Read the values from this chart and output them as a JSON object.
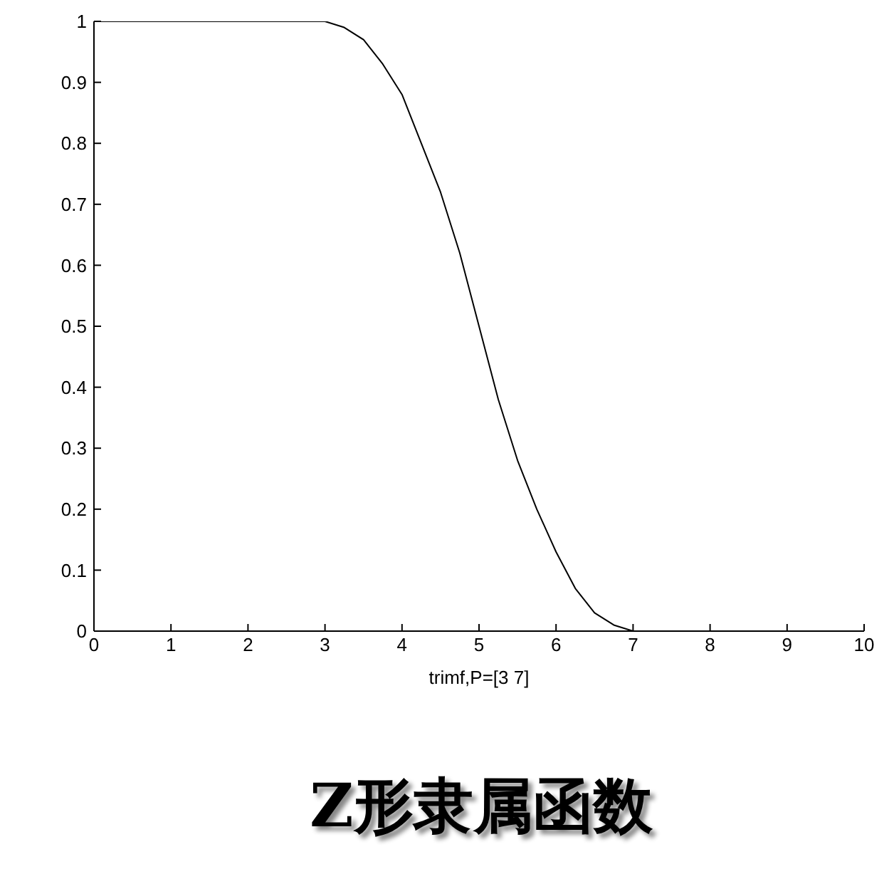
{
  "chart_data": {
    "type": "line",
    "title": "Z形隶属函数",
    "xlabel": "trimf,P=[3 7]",
    "x": [
      0,
      3,
      3.25,
      3.5,
      3.75,
      4,
      4.25,
      4.5,
      4.75,
      5,
      5.25,
      5.5,
      5.75,
      6,
      6.25,
      6.5,
      6.75,
      7,
      10
    ],
    "series": [
      {
        "color": "#000000",
        "values": [
          1,
          1,
          0.99,
          0.97,
          0.93,
          0.88,
          0.8,
          0.72,
          0.62,
          0.5,
          0.38,
          0.28,
          0.2,
          0.13,
          0.07,
          0.03,
          0.01,
          0,
          0
        ]
      }
    ],
    "xlim": [
      0,
      10
    ],
    "xticks": [
      0,
      1,
      2,
      3,
      4,
      5,
      6,
      7,
      8,
      9,
      10
    ],
    "ylim": [
      0,
      1
    ],
    "yticks": [
      0,
      0.1,
      0.2,
      0.3,
      0.4,
      0.5,
      0.6,
      0.7,
      0.8,
      0.9,
      1
    ],
    "grid": false,
    "legend": false,
    "marker": "none",
    "line_style": "solid"
  }
}
